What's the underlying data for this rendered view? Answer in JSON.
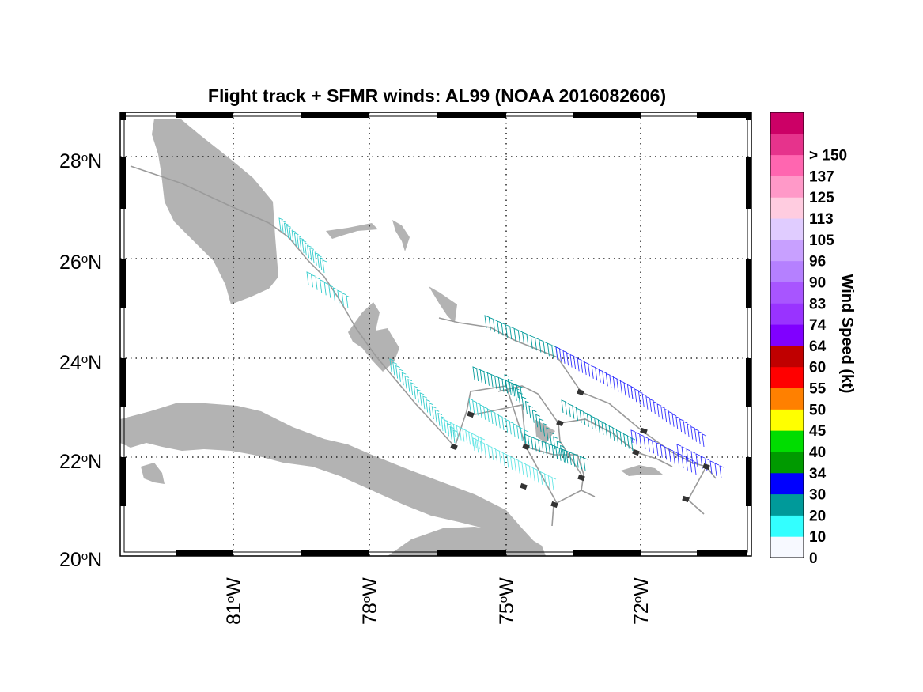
{
  "title": "Flight track + SFMR winds: AL99 (NOAA 2016082606)",
  "lat_labels": [
    {
      "lat": 28,
      "text": "28",
      "hemi": "N"
    },
    {
      "lat": 26,
      "text": "26",
      "hemi": "N"
    },
    {
      "lat": 24,
      "text": "24",
      "hemi": "N"
    },
    {
      "lat": 22,
      "text": "22",
      "hemi": "N"
    },
    {
      "lat": 20,
      "text": "20",
      "hemi": "N"
    }
  ],
  "lon_labels": [
    {
      "lon": -81,
      "text": "81",
      "hemi": "W"
    },
    {
      "lon": -78,
      "text": "78",
      "hemi": "W"
    },
    {
      "lon": -75,
      "text": "75",
      "hemi": "W"
    },
    {
      "lon": -72,
      "text": "72",
      "hemi": "W"
    }
  ],
  "colorbar": {
    "title": "Wind Speed (kt)",
    "labels": [
      "0",
      "10",
      "20",
      "30",
      "34",
      "40",
      "45",
      "50",
      "55",
      "60",
      "64",
      "74",
      "83",
      "90",
      "96",
      "105",
      "113",
      "125",
      "137",
      "> 150"
    ],
    "colors": [
      "#f7f9ff",
      "#33ffff",
      "#009a9a",
      "#0000ff",
      "#009a00",
      "#00dd00",
      "#ffff00",
      "#ff8000",
      "#ff0000",
      "#c00000",
      "#8000ff",
      "#9933ff",
      "#a855ff",
      "#b580ff",
      "#c8a0ff",
      "#e0ccff",
      "#ffcce0",
      "#ff99c8",
      "#ff66b0",
      "#e6338c",
      "#cc0066"
    ]
  },
  "flight_track": {
    "color": "#999999",
    "marker_color": "#333333",
    "wind_barb_colors": [
      "#33cccc",
      "#66e6e6",
      "#009a9a",
      "#3333ff"
    ]
  }
}
